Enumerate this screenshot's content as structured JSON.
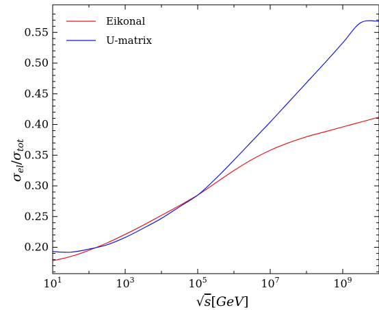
{
  "chart_data": {
    "type": "line",
    "title": "",
    "xlabel": "√s[GeV]",
    "ylabel": "σel/σtot",
    "xscale": "log",
    "xlim": [
      10,
      10000000000
    ],
    "ylim": [
      0.157,
      0.595
    ],
    "xticks": [
      {
        "value": 10,
        "base": "10",
        "exp": "1"
      },
      {
        "value": 1000,
        "base": "10",
        "exp": "3"
      },
      {
        "value": 100000,
        "base": "10",
        "exp": "5"
      },
      {
        "value": 10000000,
        "base": "10",
        "exp": "7"
      },
      {
        "value": 1000000000,
        "base": "10",
        "exp": "9"
      }
    ],
    "yticks": [
      "0.20",
      "0.25",
      "0.30",
      "0.35",
      "0.40",
      "0.45",
      "0.50",
      "0.55"
    ],
    "legend_position": "top-left",
    "grid": false,
    "series": [
      {
        "name": "Eikonal",
        "color": "#e8141e",
        "x": [
          10,
          31.6,
          100,
          316,
          1000,
          3162,
          10000,
          31623,
          100000,
          316228,
          1000000,
          3162278,
          10000000,
          31622777,
          100000000,
          316227766,
          1000000000,
          3162277660,
          10000000000
        ],
        "y": [
          0.178,
          0.185,
          0.195,
          0.207,
          0.221,
          0.236,
          0.252,
          0.268,
          0.285,
          0.305,
          0.325,
          0.343,
          0.358,
          0.37,
          0.38,
          0.388,
          0.396,
          0.404,
          0.412
        ]
      },
      {
        "name": "U-matrix",
        "color": "#1414e8",
        "x": [
          10,
          31.6,
          100,
          316,
          1000,
          3162,
          10000,
          31623,
          100000,
          316228,
          1000000,
          3162278,
          10000000,
          31622777,
          100000000,
          316227766,
          1000000000,
          3162277660,
          10000000000
        ],
        "y": [
          0.193,
          0.192,
          0.197,
          0.204,
          0.216,
          0.231,
          0.247,
          0.266,
          0.285,
          0.312,
          0.342,
          0.373,
          0.404,
          0.436,
          0.468,
          0.5,
          0.533,
          0.566,
          0.568
        ]
      }
    ]
  }
}
